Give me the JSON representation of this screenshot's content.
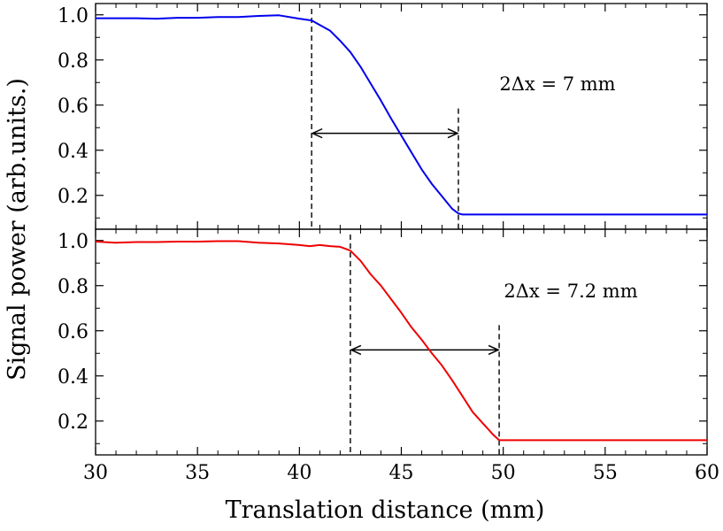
{
  "chart_data": [
    {
      "type": "line",
      "panel": "top",
      "series": [
        {
          "name": "top-signal",
          "color": "#0000ee",
          "x": [
            30,
            31,
            32,
            33,
            34,
            35,
            36,
            37,
            38,
            39,
            40,
            40.6,
            41,
            41.5,
            42,
            42.5,
            43,
            43.5,
            44,
            44.5,
            45,
            45.5,
            46,
            46.5,
            47,
            47.5,
            47.8,
            48,
            50,
            55,
            60
          ],
          "y": [
            0.985,
            0.985,
            0.985,
            0.983,
            0.987,
            0.987,
            0.99,
            0.99,
            0.995,
            0.998,
            0.983,
            0.975,
            0.955,
            0.93,
            0.885,
            0.835,
            0.77,
            0.695,
            0.62,
            0.54,
            0.465,
            0.39,
            0.315,
            0.25,
            0.195,
            0.14,
            0.12,
            0.115,
            0.115,
            0.115,
            0.115
          ]
        }
      ],
      "markers": {
        "x1": 40.6,
        "x2": 47.8
      },
      "arrow": {
        "x_start": 40.6,
        "x_end": 47.8,
        "y": 0.475
      },
      "annotation": "2Δx = 7 mm",
      "xlim": [
        30,
        60
      ],
      "ylim": [
        0.05,
        1.05
      ],
      "yticks": [
        0.2,
        0.4,
        0.6,
        0.8,
        1.0
      ],
      "ytick_labels": [
        "0.2",
        "0.4",
        "0.6",
        "0.8",
        "1.0"
      ]
    },
    {
      "type": "line",
      "panel": "bottom",
      "series": [
        {
          "name": "bottom-signal",
          "color": "#ee0000",
          "x": [
            30,
            31,
            32,
            33,
            34,
            35,
            36,
            37,
            38,
            39,
            40,
            40.5,
            41,
            41.5,
            42,
            42.5,
            43,
            43.5,
            44,
            44.5,
            45,
            45.5,
            46,
            46.5,
            47,
            47.5,
            48,
            48.5,
            49,
            49.5,
            49.8,
            50,
            55,
            60
          ],
          "y": [
            0.995,
            0.99,
            0.993,
            0.993,
            0.995,
            0.995,
            0.997,
            0.997,
            0.99,
            0.987,
            0.98,
            0.975,
            0.98,
            0.975,
            0.972,
            0.955,
            0.91,
            0.85,
            0.8,
            0.74,
            0.68,
            0.615,
            0.56,
            0.5,
            0.445,
            0.38,
            0.31,
            0.24,
            0.19,
            0.14,
            0.115,
            0.115,
            0.115,
            0.115
          ]
        }
      ],
      "markers": {
        "x1": 42.5,
        "x2": 49.8
      },
      "arrow": {
        "x_start": 42.5,
        "x_end": 49.8,
        "y": 0.515
      },
      "annotation": "2Δx = 7.2 mm",
      "xlim": [
        30,
        60
      ],
      "ylim": [
        0.05,
        1.05
      ],
      "yticks": [
        0.2,
        0.4,
        0.6,
        0.8,
        1.0
      ],
      "ytick_labels": [
        "0.2",
        "0.4",
        "0.6",
        "0.8",
        "1.0"
      ]
    }
  ],
  "axes": {
    "xlabel": "Translation distance (mm)",
    "ylabel": "Signal power (arb.units.)",
    "xticks": [
      30,
      35,
      40,
      45,
      50,
      55,
      60
    ],
    "xtick_labels": [
      "30",
      "35",
      "40",
      "45",
      "50",
      "55",
      "60"
    ]
  }
}
